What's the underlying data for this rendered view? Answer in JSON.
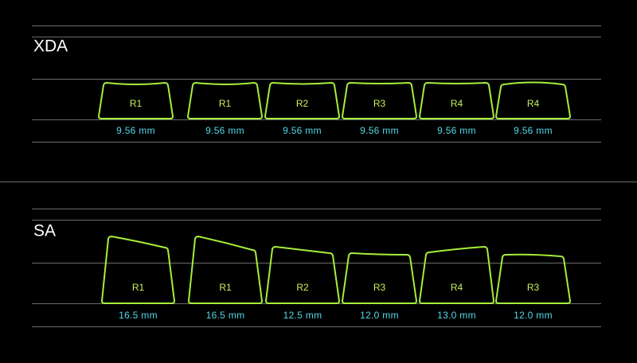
{
  "sections": [
    {
      "title": "XDA",
      "keys": [
        {
          "row": "R1",
          "height": "9.56 mm"
        },
        {
          "row": "R1",
          "height": "9.56 mm"
        },
        {
          "row": "R2",
          "height": "9.56 mm"
        },
        {
          "row": "R3",
          "height": "9.56 mm"
        },
        {
          "row": "R4",
          "height": "9.56 mm"
        },
        {
          "row": "R4",
          "height": "9.56 mm"
        }
      ]
    },
    {
      "title": "SA",
      "keys": [
        {
          "row": "R1",
          "height": "16.5 mm"
        },
        {
          "row": "R1",
          "height": "16.5 mm"
        },
        {
          "row": "R2",
          "height": "12.5 mm"
        },
        {
          "row": "R3",
          "height": "12.0 mm"
        },
        {
          "row": "R4",
          "height": "13.0 mm"
        },
        {
          "row": "R3",
          "height": "12.0 mm"
        }
      ]
    }
  ]
}
